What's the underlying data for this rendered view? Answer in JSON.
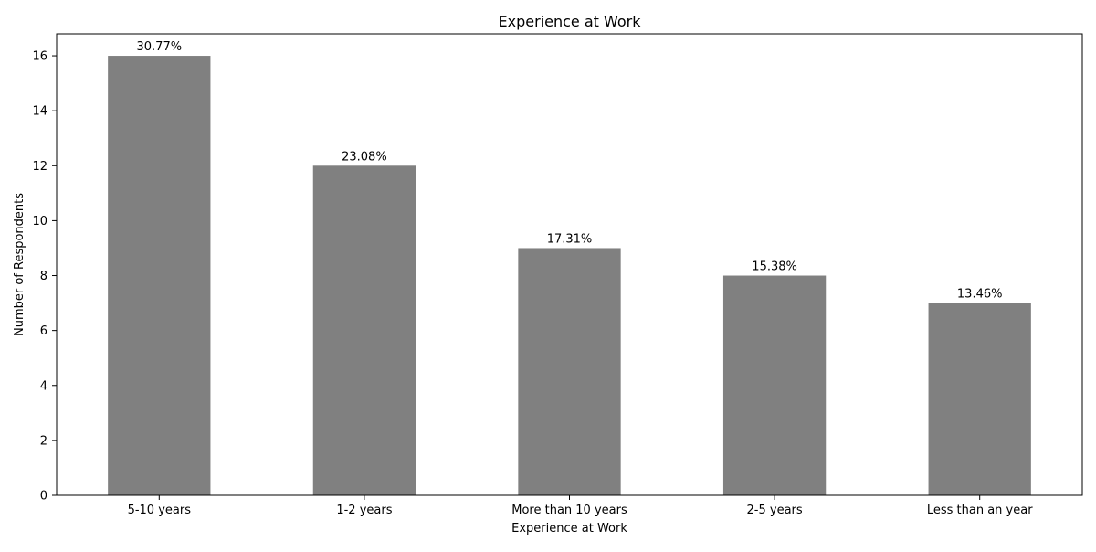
{
  "chart_data": {
    "type": "bar",
    "title": "Experience at Work",
    "xlabel": "Experience at Work",
    "ylabel": "Number of Respondents",
    "categories": [
      "5-10 years",
      "1-2 years",
      "More than 10 years",
      "2-5 years",
      "Less than an year"
    ],
    "values": [
      16,
      12,
      9,
      8,
      7
    ],
    "data_labels": [
      "30.77%",
      "23.08%",
      "17.31%",
      "15.38%",
      "13.46%"
    ],
    "ylim": [
      0,
      16.8
    ],
    "yticks": [
      0,
      2,
      4,
      6,
      8,
      10,
      12,
      14,
      16
    ],
    "grid": false,
    "legend": "none",
    "bar_color": "#808080"
  }
}
